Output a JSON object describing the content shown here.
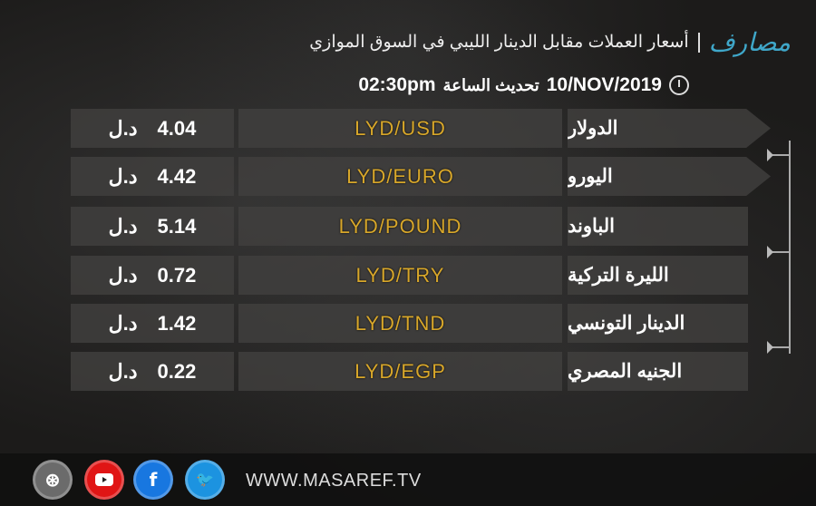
{
  "header": {
    "logo": "مصارف",
    "title": "أسعار العملات مقابل الدينار الليبي في السوق الموازي",
    "date": "10/NOV/2019",
    "update_label": "تحديث الساعة",
    "time": "02:30pm"
  },
  "rates": [
    {
      "name": "الدولار",
      "pair": "LYD/USD",
      "value": "4.04",
      "unit": "د.ل"
    },
    {
      "name": "اليورو",
      "pair": "LYD/EURO",
      "value": "4.42",
      "unit": "د.ل"
    },
    {
      "name": "الباوند",
      "pair": "LYD/POUND",
      "value": "5.14",
      "unit": "د.ل"
    },
    {
      "name": "الليرة التركية",
      "pair": "LYD/TRY",
      "value": "0.72",
      "unit": "د.ل"
    },
    {
      "name": "الدينار التونسي",
      "pair": "LYD/TND",
      "value": "1.42",
      "unit": "د.ل"
    },
    {
      "name": "الجنيه المصري",
      "pair": "LYD/EGP",
      "value": "0.22",
      "unit": "د.ل"
    }
  ],
  "footer": {
    "url": "WWW.MASAREF.TV",
    "facebook_glyph": "f",
    "twitter_glyph": "🐦",
    "dribbble_glyph": "⊛",
    "colors": {
      "dribbble": "#6b6b6b",
      "youtube": "#e01515",
      "facebook": "#1877e0",
      "twitter": "#1c93e0"
    }
  },
  "colors": {
    "pair_text": "#d8a72a",
    "logo": "#3fa7c9"
  }
}
